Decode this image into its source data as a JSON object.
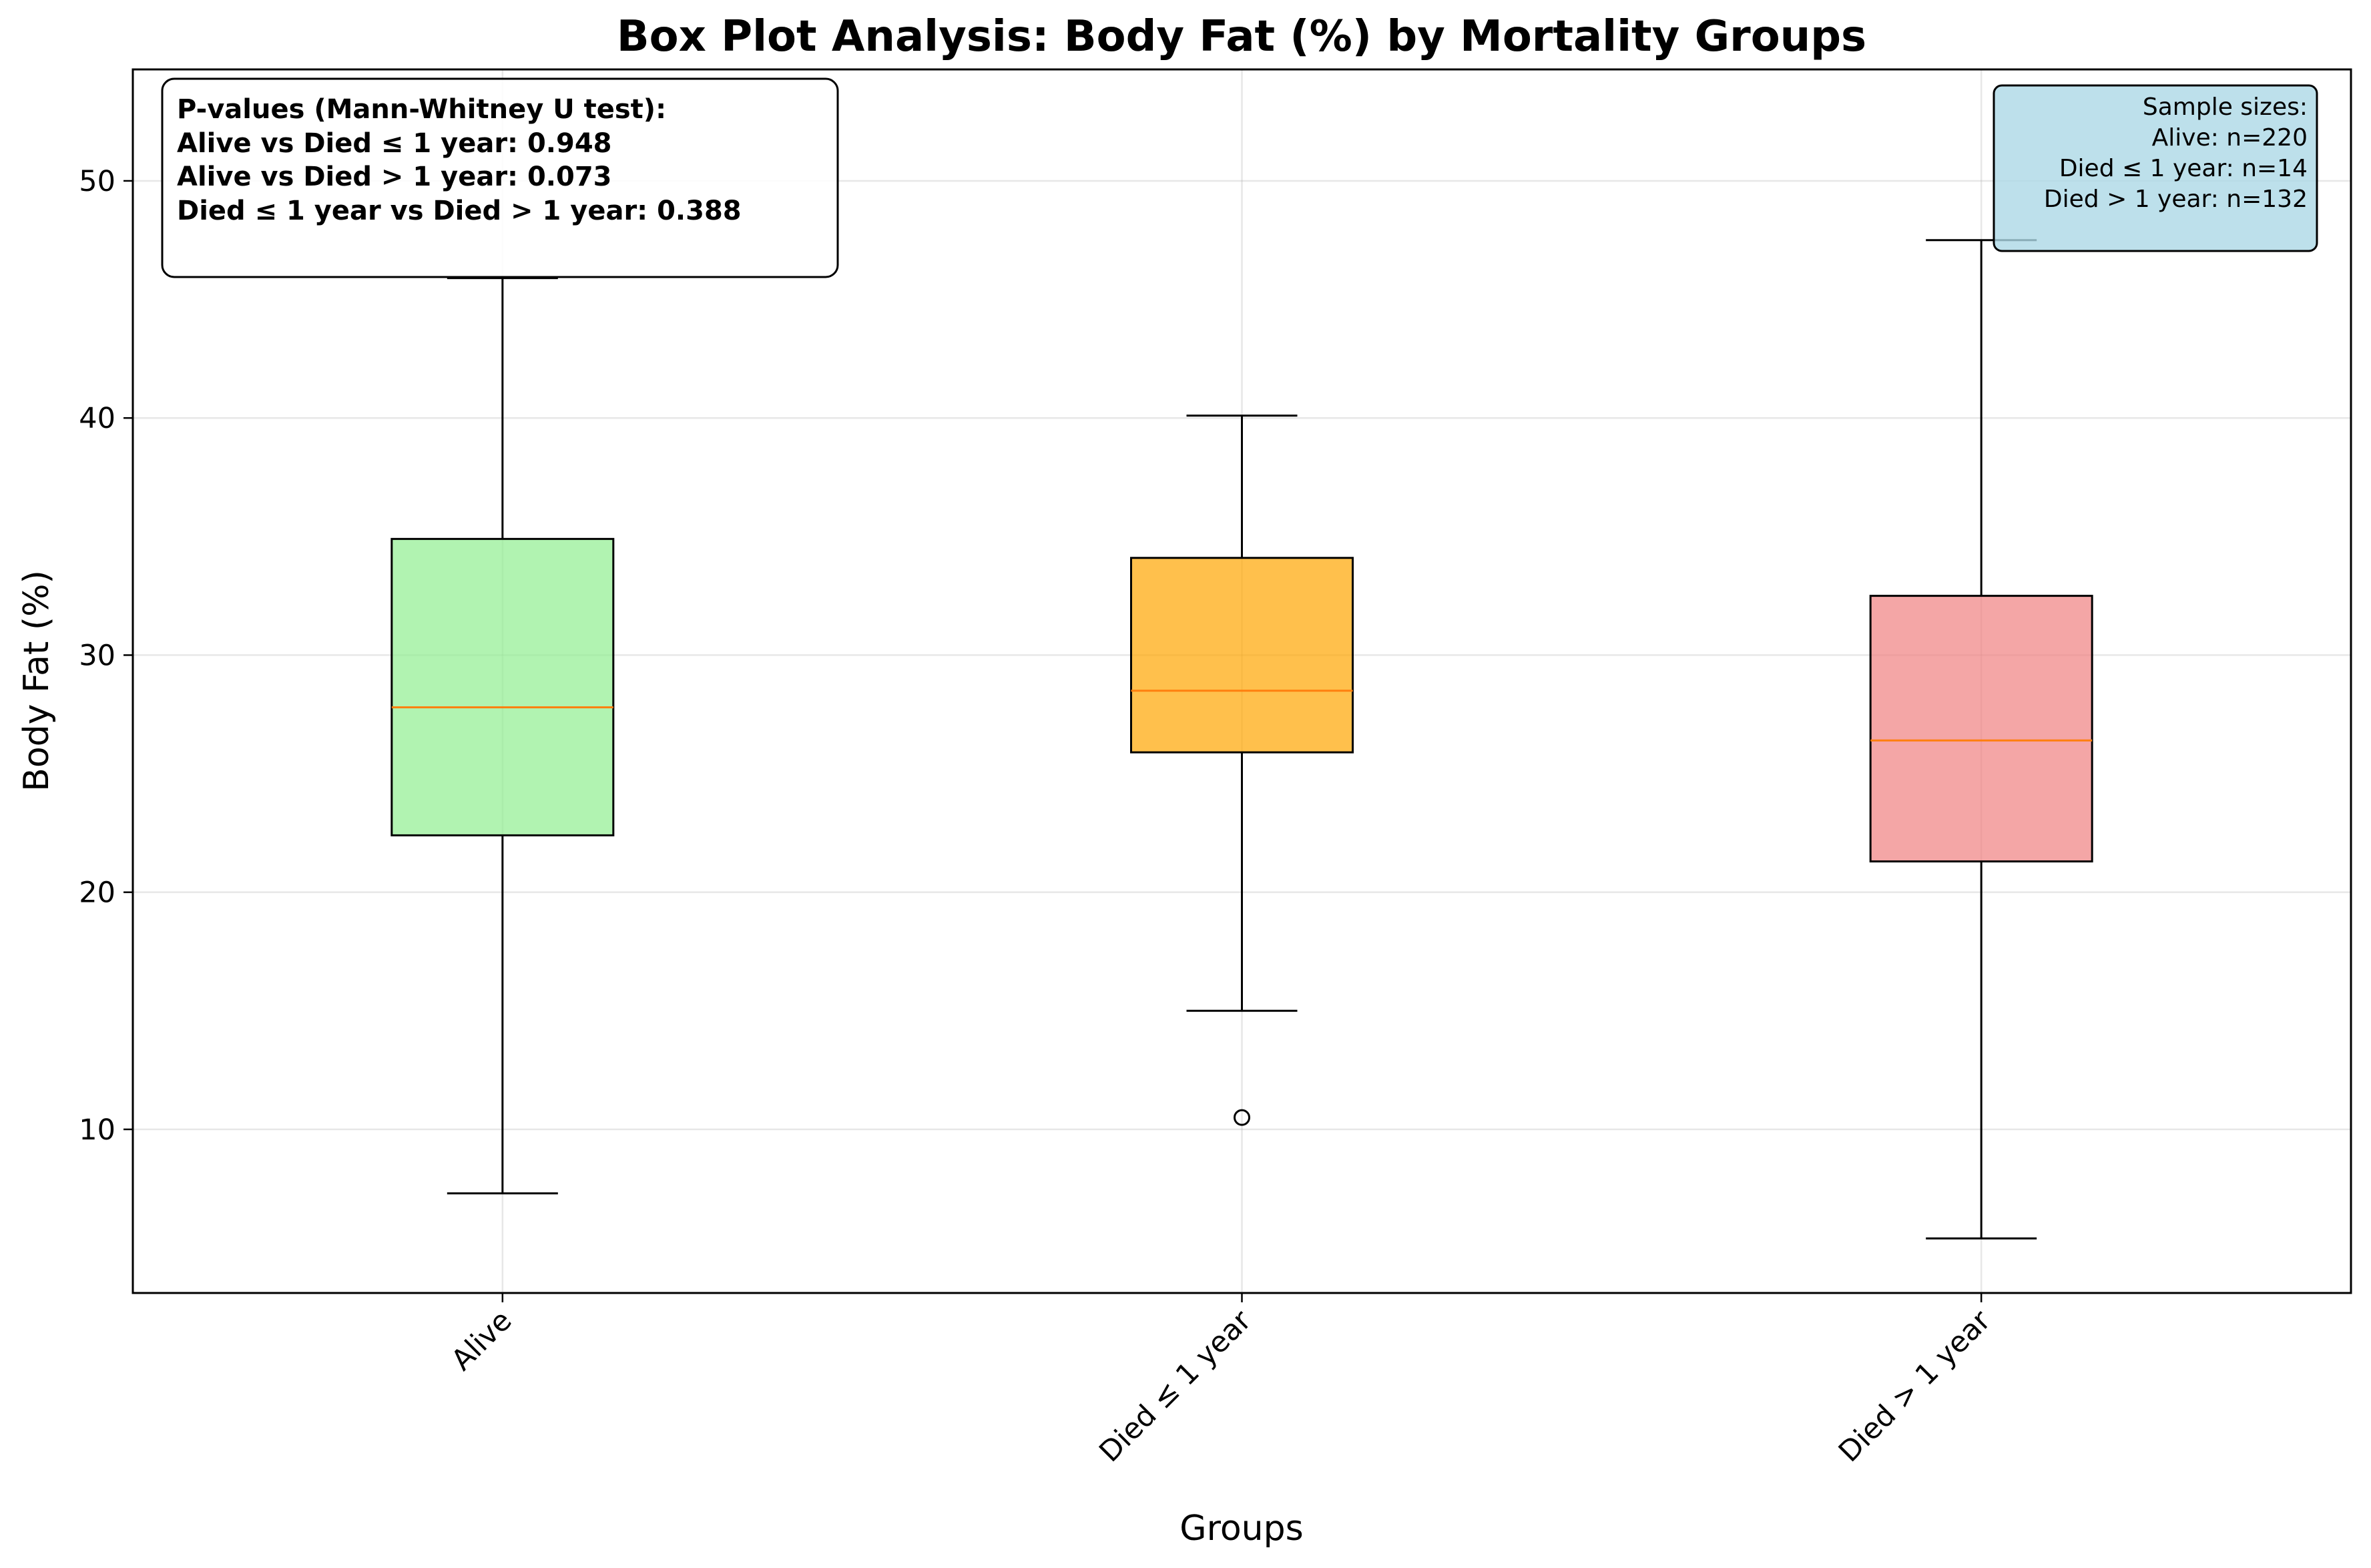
{
  "chart_data": {
    "type": "box",
    "title": "Box Plot Analysis: Body Fat (%) by Mortality Groups",
    "xlabel": "Groups",
    "ylabel": "Body Fat (%)",
    "ylim": [
      3.1,
      54.7
    ],
    "yticks": [
      10,
      20,
      30,
      40,
      50
    ],
    "grid": true,
    "categories": [
      "Alive",
      "Died ≤ 1 year",
      "Died > 1 year"
    ],
    "boxes": [
      {
        "name": "Alive",
        "whisker_low": 7.3,
        "q1": 22.4,
        "median": 27.8,
        "q3": 34.9,
        "whisker_high": 45.9,
        "outliers": [],
        "color": "#90ee90"
      },
      {
        "name": "Died ≤ 1 year",
        "whisker_low": 15.0,
        "q1": 25.9,
        "median": 28.5,
        "q3": 34.1,
        "whisker_high": 40.1,
        "outliers": [
          10.5
        ],
        "color": "#ffa500"
      },
      {
        "name": "Died > 1 year",
        "whisker_low": 5.4,
        "q1": 21.3,
        "median": 26.4,
        "q3": 32.5,
        "whisker_high": 47.5,
        "outliers": [],
        "color": "#f08080"
      }
    ],
    "median_color": "#ff7f0e",
    "pvalues_box": {
      "lines": [
        "P-values (Mann-Whitney U test):",
        "Alive vs Died ≤ 1 year: 0.948",
        "Alive vs Died > 1 year: 0.073",
        "Died ≤ 1 year vs Died > 1 year: 0.388"
      ]
    },
    "sample_sizes_box": {
      "lines": [
        "Sample sizes:",
        "Alive: n=220",
        "Died ≤ 1 year: n=14",
        "Died > 1 year: n=132"
      ],
      "background": "#add8e6"
    }
  }
}
